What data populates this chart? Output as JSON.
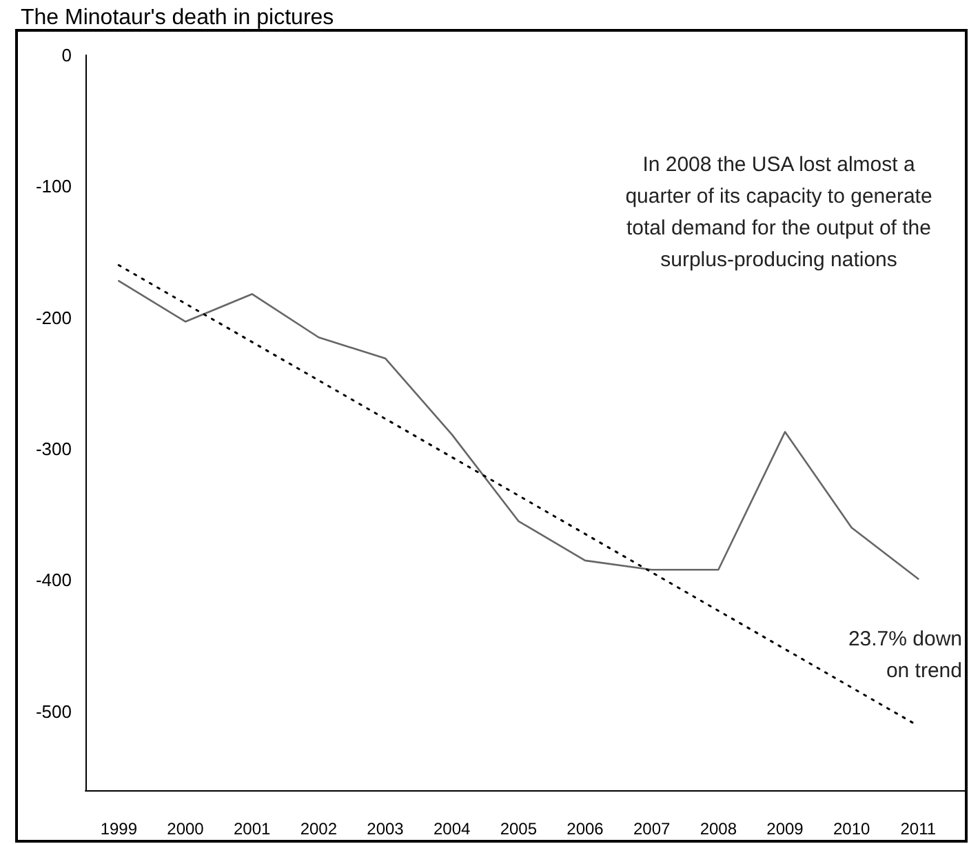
{
  "chart_data": {
    "type": "line",
    "title": "The Minotaur's death in pictures",
    "x": [
      1999,
      2000,
      2001,
      2002,
      2003,
      2004,
      2005,
      2006,
      2007,
      2008,
      2009,
      2010,
      2011
    ],
    "series": [
      {
        "color": "#666666",
        "line_style": "solid",
        "values": [
          -172,
          -203,
          -182,
          -215,
          -231,
          -289,
          -355,
          -385,
          -392,
          -392,
          -287,
          -360,
          -399
        ]
      },
      {
        "color": "#000000",
        "line_style": "dotted",
        "x": [
          1999,
          2011
        ],
        "values": [
          -160,
          -511
        ]
      }
    ],
    "xlim": [
      1998.5,
      2011.7
    ],
    "xticks": [
      1999,
      2000,
      2001,
      2002,
      2003,
      2004,
      2005,
      2006,
      2007,
      2008,
      2009,
      2010,
      2011
    ],
    "ylim": [
      -560,
      0
    ],
    "yticks": [
      0,
      -100,
      -200,
      -300,
      -400,
      -500
    ],
    "grid": false,
    "marker": "none",
    "annotations": [
      "In 2008 the USA lost almost a\nquarter of its capacity to generate\ntotal demand for the output of the\nsurplus-producing nations",
      "23.7% down\non trend"
    ]
  }
}
